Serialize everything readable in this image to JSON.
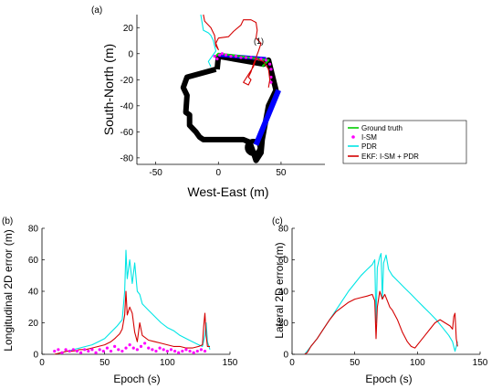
{
  "figure": {
    "panels": [
      {
        "id": "a",
        "label": "(a)"
      },
      {
        "id": "b",
        "label": "(b)"
      },
      {
        "id": "c",
        "label": "(c)"
      }
    ]
  },
  "colors": {
    "ground_truth": "#00cc00",
    "ism": "#ff00ff",
    "pdr": "#00e5e5",
    "ekf": "#d40000",
    "building": "#000000",
    "blue_segment": "#0000ff"
  },
  "chart_data": [
    {
      "id": "a",
      "type": "line",
      "xlabel": "West-East (m)",
      "ylabel": "South-North (m)",
      "xlim": [
        -65,
        85
      ],
      "ylim": [
        -85,
        30
      ],
      "xticks": [
        -50,
        0,
        50
      ],
      "yticks": [
        20,
        0,
        -20,
        -40,
        -60,
        -80
      ],
      "annotation": "(1)",
      "legend": {
        "placement": "right",
        "entries": [
          "Ground truth",
          "I-SM",
          "PDR",
          "EKF: I-SM + PDR"
        ]
      },
      "building_outline": [
        [
          -2,
          -12
        ],
        [
          -25,
          -18
        ],
        [
          -28,
          -26
        ],
        [
          -25,
          -32
        ],
        [
          -26,
          -45
        ],
        [
          -23,
          -47
        ],
        [
          -23,
          -55
        ],
        [
          -20,
          -58
        ],
        [
          -18,
          -60
        ],
        [
          -15,
          -64
        ],
        [
          -12,
          -66
        ],
        [
          20,
          -66
        ],
        [
          25,
          -68
        ],
        [
          28,
          -76
        ],
        [
          30,
          -82
        ],
        [
          34,
          -76
        ],
        [
          35,
          -66
        ],
        [
          40,
          -40
        ],
        [
          46,
          -28
        ],
        [
          40,
          -5
        ],
        [
          36,
          -8
        ],
        [
          0,
          -2
        ],
        [
          -1,
          -12
        ]
      ],
      "blue_segment": [
        [
          30,
          -70
        ],
        [
          48,
          -28
        ]
      ],
      "series": [
        {
          "name": "Ground truth",
          "points": [
            [
              -2,
              -2
            ],
            [
              0,
              0
            ],
            [
              10,
              -1
            ],
            [
              25,
              -3
            ],
            [
              40,
              -5
            ],
            [
              35,
              -10
            ]
          ]
        },
        {
          "name": "I-SM",
          "points": [
            [
              -3,
              -2
            ],
            [
              -1,
              -4
            ],
            [
              1,
              -1
            ],
            [
              3,
              0
            ],
            [
              6,
              -1
            ],
            [
              10,
              -2
            ],
            [
              14,
              -2
            ],
            [
              18,
              -3
            ],
            [
              22,
              -3
            ],
            [
              26,
              -3
            ],
            [
              30,
              -4
            ],
            [
              34,
              -4
            ],
            [
              38,
              -5
            ],
            [
              41,
              -8
            ],
            [
              42,
              -12
            ],
            [
              42,
              -18
            ],
            [
              42,
              -22
            ]
          ]
        },
        {
          "name": "PDR",
          "points": [
            [
              -14,
              30
            ],
            [
              -13,
              24
            ],
            [
              -12,
              18
            ],
            [
              -8,
              16
            ],
            [
              -6,
              14
            ],
            [
              -4,
              10
            ],
            [
              -3,
              6
            ],
            [
              -2,
              2
            ],
            [
              -5,
              -2
            ],
            [
              -8,
              -6
            ],
            [
              -6,
              -10
            ]
          ]
        },
        {
          "name": "EKF: I-SM + PDR",
          "points": [
            [
              -12,
              30
            ],
            [
              -11,
              25
            ],
            [
              -6,
              20
            ],
            [
              -3,
              14
            ],
            [
              -2,
              6
            ],
            [
              0,
              3
            ],
            [
              -2,
              8
            ],
            [
              0,
              12
            ],
            [
              8,
              13
            ],
            [
              12,
              17
            ],
            [
              18,
              22
            ],
            [
              20,
              26
            ],
            [
              26,
              26
            ],
            [
              30,
              24
            ],
            [
              31,
              18
            ],
            [
              30,
              12
            ],
            [
              34,
              8
            ],
            [
              32,
              2
            ],
            [
              30,
              -3
            ],
            [
              28,
              -8
            ],
            [
              26,
              -14
            ],
            [
              24,
              -18
            ],
            [
              26,
              -20
            ],
            [
              24,
              -24
            ],
            [
              20,
              -22
            ],
            [
              24,
              -16
            ],
            [
              28,
              -10
            ],
            [
              30,
              -4
            ],
            [
              36,
              -6
            ],
            [
              40,
              -12
            ],
            [
              41,
              -20
            ],
            [
              40,
              -26
            ]
          ]
        }
      ]
    },
    {
      "id": "b",
      "type": "line",
      "xlabel": "Epoch (s)",
      "ylabel": "Longitudinal 2D error (m)",
      "xlim": [
        0,
        150
      ],
      "ylim": [
        0,
        80
      ],
      "xticks": [
        0,
        50,
        100,
        150
      ],
      "yticks": [
        0,
        20,
        40,
        60,
        80
      ],
      "series": [
        {
          "name": "PDR",
          "points": [
            [
              10,
              0
            ],
            [
              20,
              2
            ],
            [
              30,
              4
            ],
            [
              40,
              6
            ],
            [
              45,
              8
            ],
            [
              50,
              10
            ],
            [
              55,
              14
            ],
            [
              60,
              18
            ],
            [
              64,
              22
            ],
            [
              66,
              40
            ],
            [
              67,
              66
            ],
            [
              68,
              48
            ],
            [
              70,
              60
            ],
            [
              72,
              45
            ],
            [
              74,
              58
            ],
            [
              76,
              40
            ],
            [
              78,
              38
            ],
            [
              80,
              32
            ],
            [
              85,
              28
            ],
            [
              90,
              24
            ],
            [
              95,
              20
            ],
            [
              100,
              17
            ],
            [
              105,
              15
            ],
            [
              110,
              12
            ],
            [
              115,
              10
            ],
            [
              120,
              8
            ],
            [
              125,
              6
            ],
            [
              128,
              5
            ],
            [
              130,
              12
            ],
            [
              131,
              20
            ],
            [
              132,
              8
            ],
            [
              134,
              3
            ]
          ]
        },
        {
          "name": "EKF: I-SM + PDR",
          "points": [
            [
              10,
              0
            ],
            [
              15,
              1
            ],
            [
              20,
              2
            ],
            [
              25,
              2
            ],
            [
              30,
              3
            ],
            [
              35,
              3
            ],
            [
              40,
              4
            ],
            [
              45,
              5
            ],
            [
              50,
              6
            ],
            [
              55,
              8
            ],
            [
              58,
              10
            ],
            [
              62,
              13
            ],
            [
              64,
              16
            ],
            [
              66,
              25
            ],
            [
              67,
              40
            ],
            [
              68,
              25
            ],
            [
              70,
              30
            ],
            [
              72,
              26
            ],
            [
              74,
              14
            ],
            [
              76,
              8
            ],
            [
              78,
              20
            ],
            [
              80,
              12
            ],
            [
              85,
              9
            ],
            [
              90,
              8
            ],
            [
              95,
              7
            ],
            [
              100,
              6
            ],
            [
              105,
              5
            ],
            [
              110,
              5
            ],
            [
              115,
              4
            ],
            [
              120,
              4
            ],
            [
              125,
              5
            ],
            [
              128,
              6
            ],
            [
              129,
              18
            ],
            [
              130,
              26
            ],
            [
              131,
              12
            ],
            [
              132,
              5
            ],
            [
              134,
              5
            ]
          ]
        },
        {
          "name": "I-SM",
          "points": [
            [
              10,
              2
            ],
            [
              13,
              3
            ],
            [
              16,
              1
            ],
            [
              19,
              3
            ],
            [
              22,
              2
            ],
            [
              25,
              3
            ],
            [
              28,
              2
            ],
            [
              31,
              1
            ],
            [
              34,
              3
            ],
            [
              37,
              2
            ],
            [
              40,
              3
            ],
            [
              43,
              1
            ],
            [
              46,
              3
            ],
            [
              49,
              2
            ],
            [
              52,
              4
            ],
            [
              55,
              2
            ],
            [
              58,
              5
            ],
            [
              61,
              3
            ],
            [
              64,
              2
            ],
            [
              67,
              4
            ],
            [
              70,
              6
            ],
            [
              73,
              4
            ],
            [
              76,
              3
            ],
            [
              79,
              5
            ],
            [
              82,
              7
            ],
            [
              85,
              4
            ],
            [
              88,
              3
            ],
            [
              91,
              2
            ],
            [
              94,
              4
            ],
            [
              97,
              3
            ],
            [
              100,
              2
            ],
            [
              103,
              3
            ],
            [
              106,
              2
            ],
            [
              109,
              1
            ],
            [
              112,
              2
            ],
            [
              115,
              3
            ],
            [
              118,
              2
            ],
            [
              121,
              1
            ],
            [
              124,
              2
            ],
            [
              127,
              3
            ],
            [
              130,
              2
            ]
          ]
        }
      ]
    },
    {
      "id": "c",
      "type": "line",
      "xlabel": "Epoch (s)",
      "ylabel": "Lateral 2D error (m)",
      "xlim": [
        0,
        150
      ],
      "ylim": [
        0,
        80
      ],
      "xticks": [
        0,
        50,
        100,
        150
      ],
      "yticks": [
        0,
        20,
        40,
        60,
        80
      ],
      "series": [
        {
          "name": "PDR",
          "points": [
            [
              10,
              0
            ],
            [
              15,
              5
            ],
            [
              20,
              10
            ],
            [
              25,
              16
            ],
            [
              30,
              22
            ],
            [
              35,
              28
            ],
            [
              40,
              34
            ],
            [
              45,
              40
            ],
            [
              50,
              45
            ],
            [
              55,
              50
            ],
            [
              60,
              54
            ],
            [
              64,
              57
            ],
            [
              66,
              60
            ],
            [
              67,
              20
            ],
            [
              68,
              55
            ],
            [
              70,
              62
            ],
            [
              71,
              64
            ],
            [
              72,
              35
            ],
            [
              73,
              58
            ],
            [
              75,
              63
            ],
            [
              77,
              54
            ],
            [
              80,
              50
            ],
            [
              85,
              46
            ],
            [
              90,
              42
            ],
            [
              95,
              38
            ],
            [
              100,
              34
            ],
            [
              105,
              30
            ],
            [
              110,
              26
            ],
            [
              115,
              22
            ],
            [
              120,
              17
            ],
            [
              125,
              12
            ],
            [
              128,
              8
            ],
            [
              130,
              2
            ],
            [
              131,
              5
            ],
            [
              132,
              8
            ]
          ]
        },
        {
          "name": "EKF: I-SM + PDR",
          "points": [
            [
              10,
              0
            ],
            [
              12,
              1
            ],
            [
              15,
              5
            ],
            [
              20,
              10
            ],
            [
              25,
              16
            ],
            [
              30,
              22
            ],
            [
              35,
              27
            ],
            [
              40,
              30
            ],
            [
              45,
              33
            ],
            [
              50,
              35
            ],
            [
              55,
              36
            ],
            [
              60,
              37
            ],
            [
              64,
              38
            ],
            [
              66,
              34
            ],
            [
              67,
              10
            ],
            [
              68,
              30
            ],
            [
              70,
              40
            ],
            [
              72,
              35
            ],
            [
              74,
              38
            ],
            [
              76,
              34
            ],
            [
              78,
              30
            ],
            [
              80,
              28
            ],
            [
              84,
              22
            ],
            [
              88,
              14
            ],
            [
              92,
              8
            ],
            [
              95,
              5
            ],
            [
              98,
              4
            ],
            [
              102,
              8
            ],
            [
              106,
              12
            ],
            [
              110,
              16
            ],
            [
              114,
              20
            ],
            [
              118,
              22
            ],
            [
              122,
              20
            ],
            [
              126,
              18
            ],
            [
              128,
              16
            ],
            [
              129,
              24
            ],
            [
              130,
              26
            ],
            [
              131,
              10
            ],
            [
              132,
              5
            ]
          ]
        }
      ]
    }
  ]
}
